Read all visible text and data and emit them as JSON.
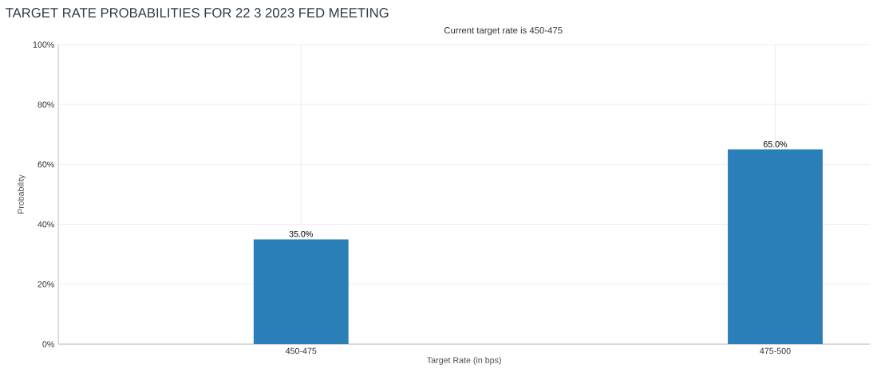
{
  "chart_data": {
    "type": "bar",
    "title": "TARGET RATE PROBABILITIES FOR 22 3 2023 FED MEETING",
    "subtitle": "Current target rate is 450-475",
    "xlabel": "Target Rate (in bps)",
    "ylabel": "Probability",
    "categories": [
      "450-475",
      "475-500"
    ],
    "values": [
      35,
      65
    ],
    "value_labels": [
      "35.0%",
      "65.0%"
    ],
    "color": "#2a7fb8",
    "ylim": [
      0,
      100
    ],
    "yticks": [
      {
        "value": 0,
        "label": "0%"
      },
      {
        "value": 20,
        "label": "20%"
      },
      {
        "value": 40,
        "label": "40%"
      },
      {
        "value": 60,
        "label": "60%"
      },
      {
        "value": 80,
        "label": "80%"
      },
      {
        "value": 100,
        "label": "100%"
      }
    ],
    "grid": true
  }
}
